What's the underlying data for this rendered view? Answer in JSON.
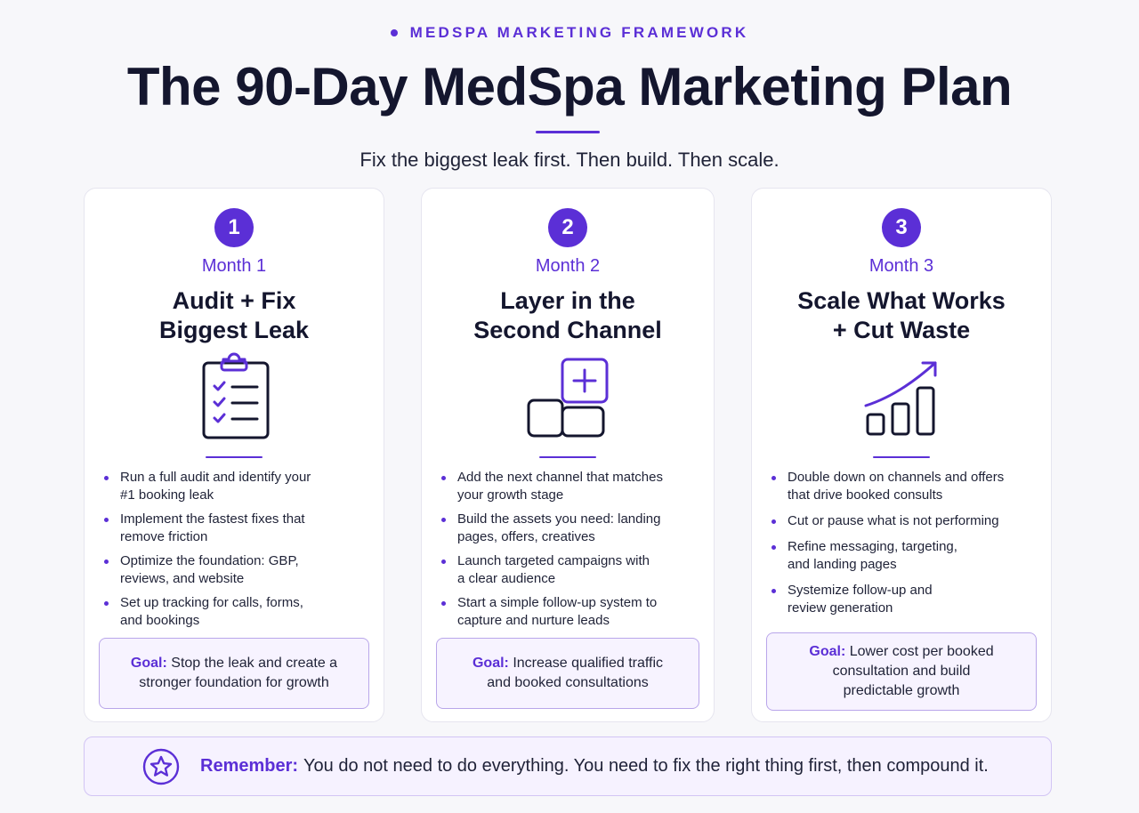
{
  "header": {
    "eyebrow": "MEDSPA MARKETING FRAMEWORK",
    "title": "The 90-Day MedSpa Marketing Plan",
    "subtitle": "Fix the biggest leak first. Then build. Then scale."
  },
  "colors": {
    "accent": "#5b2fd6",
    "text": "#14162e",
    "card_bg": "#ffffff",
    "goal_bg": "#f7f3ff"
  },
  "cards": [
    {
      "number": "1",
      "month": "Month 1",
      "title_lines": [
        "Audit + Fix",
        "Biggest Leak"
      ],
      "icon": "clipboard-checklist-icon",
      "bullets": [
        [
          "Run a full audit and identify your",
          "#1 booking leak"
        ],
        [
          "Implement the fastest fixes that",
          "remove friction"
        ],
        [
          "Optimize the foundation: GBP,",
          "reviews, and website"
        ],
        [
          "Set up tracking for calls, forms,",
          "and bookings"
        ]
      ],
      "goal_label": "Goal:",
      "goal_lines": [
        "Stop the leak and create a",
        "stronger foundation for growth"
      ]
    },
    {
      "number": "2",
      "month": "Month 2",
      "title_lines": [
        "Layer in the",
        "Second Channel"
      ],
      "icon": "add-channel-blocks-icon",
      "bullets": [
        [
          "Add the next channel that matches",
          "your growth stage"
        ],
        [
          "Build the assets you need: landing",
          "pages, offers, creatives"
        ],
        [
          "Launch targeted campaigns with",
          "a clear audience"
        ],
        [
          "Start a simple follow-up system to",
          "capture and nurture leads"
        ]
      ],
      "goal_label": "Goal:",
      "goal_lines": [
        "Increase qualified traffic",
        "and booked consultations"
      ]
    },
    {
      "number": "3",
      "month": "Month 3",
      "title_lines": [
        "Scale What Works",
        "+ Cut Waste"
      ],
      "icon": "growth-bar-chart-icon",
      "bullets": [
        [
          "Double down on channels and offers",
          "that drive booked consults"
        ],
        [
          "Cut or pause what is not performing"
        ],
        [
          "Refine messaging, targeting,",
          "and landing pages"
        ],
        [
          "Systemize follow-up and",
          "review generation"
        ]
      ],
      "goal_label": "Goal:",
      "goal_lines": [
        "Lower cost per booked",
        "consultation and build",
        "predictable growth"
      ]
    }
  ],
  "remember": {
    "icon": "star-icon",
    "label": "Remember:",
    "text": "You do not need to do everything. You need to fix the right thing first, then compound it."
  }
}
